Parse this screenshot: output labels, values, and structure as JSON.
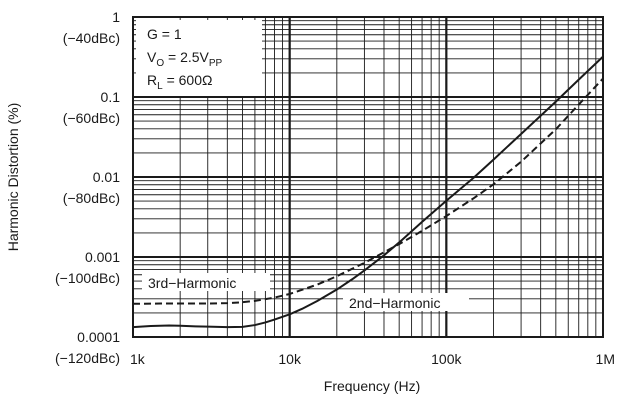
{
  "chart_data": {
    "type": "line",
    "xlabel": "Frequency (Hz)",
    "ylabel": "Harmonic Distortion (%)",
    "x_scale": "log",
    "y_scale": "log",
    "xlim": [
      1000,
      1000000
    ],
    "ylim": [
      0.0001,
      1
    ],
    "grid": true,
    "x_ticks": [
      {
        "value": 1000,
        "label": "1k"
      },
      {
        "value": 10000,
        "label": "10k"
      },
      {
        "value": 100000,
        "label": "100k"
      },
      {
        "value": 1000000,
        "label": "1M"
      }
    ],
    "y_ticks": [
      {
        "value": 1,
        "label": "1",
        "sublabel": "(−40dBc)"
      },
      {
        "value": 0.1,
        "label": "0.1",
        "sublabel": "(−60dBc)"
      },
      {
        "value": 0.01,
        "label": "0.01",
        "sublabel": "(−80dBc)"
      },
      {
        "value": 0.001,
        "label": "0.001",
        "sublabel": "(−100dBc)"
      },
      {
        "value": 0.0001,
        "label": "0.0001",
        "sublabel": "(−120dBc)"
      }
    ],
    "conditions": {
      "gain": {
        "main": "G = 1"
      },
      "vo": {
        "main": "V",
        "sub": "O",
        "mid": " = 2.5V",
        "sub2": "PP"
      },
      "rl": {
        "main": "R",
        "sub": "L",
        "mid": " = 600Ω"
      }
    },
    "series": [
      {
        "name": "2nd−Harmonic",
        "style": "solid",
        "color": "#1a1a1a",
        "x": [
          1000,
          1300,
          1700,
          2000,
          2500,
          3000,
          4000,
          5000,
          6000,
          7000,
          8000,
          10000,
          12000,
          15000,
          20000,
          25000,
          30000,
          40000,
          50000,
          70000,
          100000,
          150000,
          200000,
          300000,
          500000,
          700000,
          1000000
        ],
        "values": [
          0.000133,
          0.000137,
          0.000139,
          0.000138,
          0.000136,
          0.000135,
          0.000133,
          0.000134,
          0.000141,
          0.000152,
          0.000165,
          0.000192,
          0.000225,
          0.000282,
          0.000392,
          0.000525,
          0.00068,
          0.00105,
          0.00152,
          0.00275,
          0.00505,
          0.00985,
          0.0165,
          0.0345,
          0.0875,
          0.165,
          0.32
        ]
      },
      {
        "name": "3rd−Harmonic",
        "style": "dashed",
        "color": "#1a1a1a",
        "x": [
          1000,
          1500,
          2000,
          3000,
          4000,
          5000,
          6000,
          8000,
          10000,
          15000,
          20000,
          30000,
          50000,
          70000,
          100000,
          150000,
          200000,
          300000,
          500000,
          700000,
          1000000
        ],
        "values": [
          0.00026,
          0.000262,
          0.000262,
          0.000262,
          0.000265,
          0.000272,
          0.000283,
          0.000311,
          0.000345,
          0.000452,
          0.000575,
          0.000845,
          0.00145,
          0.00212,
          0.00325,
          0.00545,
          0.0081,
          0.0155,
          0.0395,
          0.0805,
          0.17
        ]
      }
    ],
    "annotations": [
      {
        "text": "3rd−Harmonic",
        "series": "3rd−Harmonic"
      },
      {
        "text": "2nd−Harmonic",
        "series": "2nd−Harmonic"
      }
    ]
  }
}
